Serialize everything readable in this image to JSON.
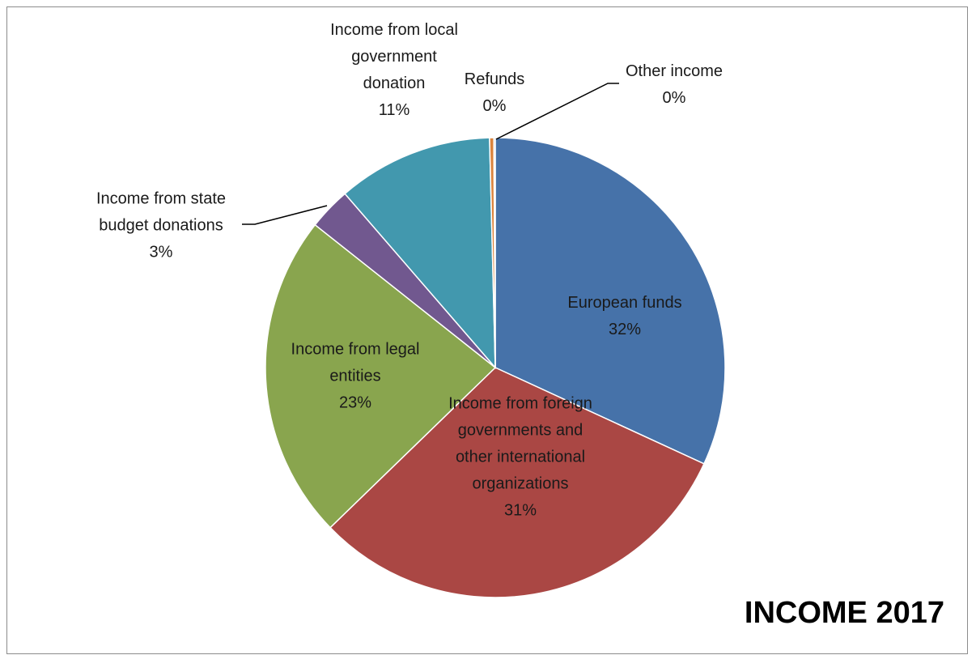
{
  "chart_data": {
    "type": "pie",
    "title": "INCOME 2017",
    "slices": [
      {
        "name": "European funds",
        "value": 32,
        "label": "32%",
        "color": "#4672a9",
        "lines": [
          "European funds"
        ]
      },
      {
        "name": "Income from foreign governments and other international organizations",
        "value": 31,
        "label": "31%",
        "color": "#aa4744",
        "lines": [
          "Income from foreign",
          "governments and",
          "other international",
          "organizations"
        ]
      },
      {
        "name": "Income from legal entities",
        "value": 23,
        "label": "23%",
        "color": "#89a54e",
        "lines": [
          "Income from legal",
          "entities"
        ]
      },
      {
        "name": "Income from state budget donations",
        "value": 3,
        "label": "3%",
        "color": "#71588f",
        "lines": [
          "Income from state",
          "budget donations"
        ]
      },
      {
        "name": "Income from local government donation",
        "value": 11,
        "label": "11%",
        "color": "#4298ae",
        "lines": [
          "Income from local",
          "government",
          "donation"
        ]
      },
      {
        "name": "Refunds",
        "value": 0.3,
        "label": "0%",
        "color": "#db843d",
        "lines": [
          "Refunds"
        ]
      },
      {
        "name": "Other income",
        "value": 0.1,
        "label": "0%",
        "color": "#93a9cf",
        "lines": [
          "Other income"
        ]
      }
    ]
  }
}
